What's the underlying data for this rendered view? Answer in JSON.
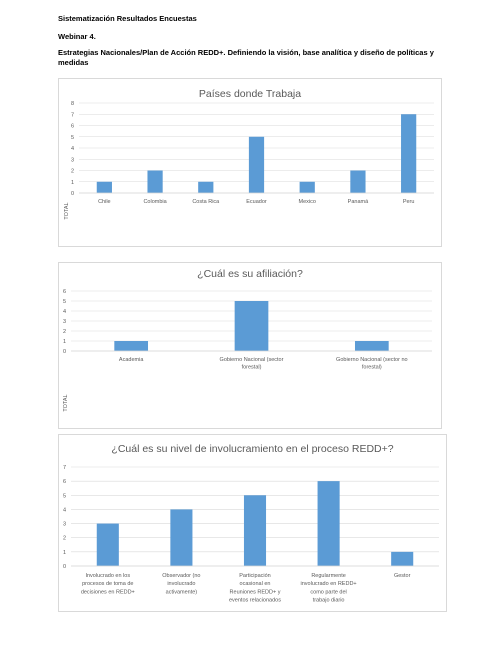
{
  "document": {
    "heading": "Sistematización Resultados Encuestas",
    "webinar": "Webinar 4.",
    "topic": "Estrategias Nacionales/Plan de Acción REDD+. Definiendo la visión, base analítica y diseño de políticas y medidas"
  },
  "colors": {
    "bar": "#5b9bd5",
    "grid": "#d9d9d9",
    "axis_text": "#595959"
  },
  "chart_data": [
    {
      "type": "bar",
      "title": "Países donde Trabaja",
      "ylabel": "TOTAL",
      "categories": [
        "Chile",
        "Colombia",
        "Costa Rica",
        "Ecuador",
        "Mexico",
        "Panamá",
        "Peru"
      ],
      "values": [
        1,
        2,
        1,
        5,
        1,
        2,
        7
      ],
      "ylim": [
        0,
        8
      ],
      "yticks": [
        "0",
        "1",
        "2",
        "3",
        "4",
        "5",
        "6",
        "7",
        "8"
      ],
      "grid": true
    },
    {
      "type": "bar",
      "title": "¿Cuál es su afiliación?",
      "ylabel": "TOTAL",
      "categories": [
        "Academia",
        "Gobierno Nacional (sector forestal)",
        "Gobierno Nacional (sector no forestal)"
      ],
      "values": [
        1,
        5,
        1
      ],
      "ylim": [
        0,
        6
      ],
      "yticks": [
        "0",
        "1",
        "2",
        "3",
        "4",
        "5",
        "6"
      ],
      "grid": true
    },
    {
      "type": "bar",
      "title": "¿Cuál es su nivel de involucramiento en el proceso REDD+?",
      "ylabel": "",
      "categories": [
        "Involucrado en los procesos de toma de decisiones en REDD+",
        "Observador (no involucrado activamente)",
        "Participación ocasional en Reuniones REDD+ y eventos relacionados",
        "Regularmente involucrado en REDD+ como parte del trabajo diario",
        "Gestor"
      ],
      "values": [
        3,
        4,
        5,
        6,
        1
      ],
      "ylim": [
        0,
        7
      ],
      "yticks": [
        "0",
        "1",
        "2",
        "3",
        "4",
        "5",
        "6",
        "7"
      ],
      "grid": true
    }
  ]
}
